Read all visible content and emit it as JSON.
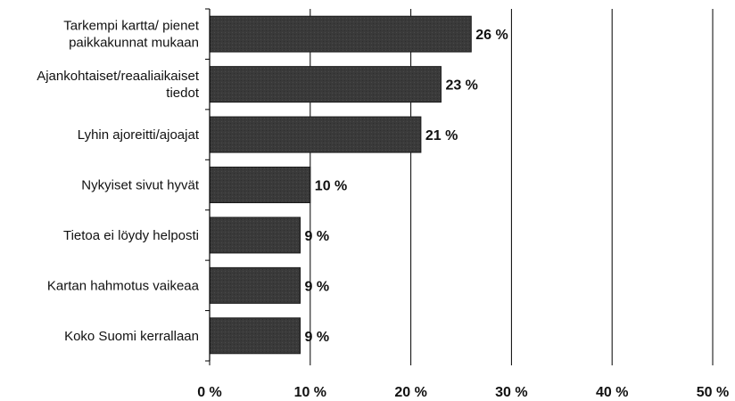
{
  "chart_data": {
    "type": "bar",
    "orientation": "horizontal",
    "categories": [
      [
        "Tarkempi kartta/ pienet",
        "paikkakunnat mukaan"
      ],
      [
        "Ajankohtaiset/reaaliaikaiset",
        "tiedot"
      ],
      [
        "Lyhin ajoreitti/ajoajat"
      ],
      [
        "Nykyiset sivut hyvät"
      ],
      [
        "Tietoa ei löydy helposti"
      ],
      [
        "Kartan hahmotus vaikeaa"
      ],
      [
        "Koko Suomi kerrallaan"
      ]
    ],
    "values": [
      26,
      23,
      21,
      10,
      9,
      9,
      9
    ],
    "value_labels": [
      "26 %",
      "23 %",
      "21 %",
      "10 %",
      "9 %",
      "9 %",
      "9 %"
    ],
    "x_ticks": [
      0,
      10,
      20,
      30,
      40,
      50
    ],
    "x_tick_labels": [
      "0 %",
      "10 %",
      "20 %",
      "30 %",
      "40 %",
      "50 %"
    ],
    "xlim": [
      0,
      50
    ],
    "grid": "vertical",
    "legend": "none",
    "title": "",
    "xlabel": "",
    "ylabel": "",
    "colors": {
      "bar": "#3a3a3a",
      "bar_edge": "#1a1a1a",
      "grid": "#000000",
      "text": "#111111"
    }
  }
}
